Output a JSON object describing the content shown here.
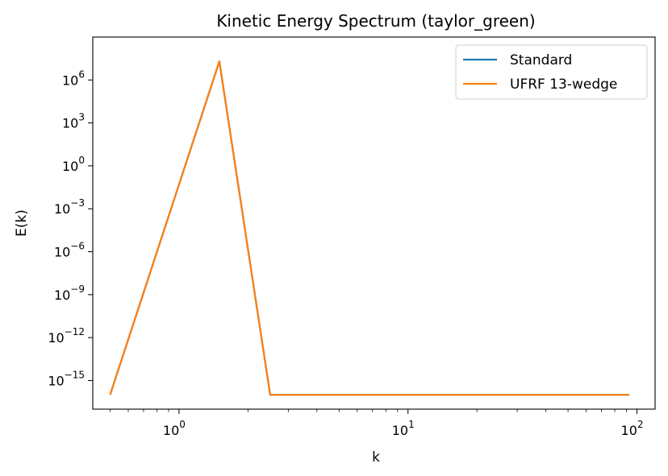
{
  "chart_data": {
    "type": "line",
    "title": "Kinetic Energy Spectrum (taylor_green)",
    "xlabel": "k",
    "ylabel": "E(k)",
    "xscale": "log",
    "yscale": "log",
    "xlim": [
      0.42,
      120
    ],
    "ylim": [
      1e-17,
      1000000000.0
    ],
    "grid": false,
    "legend_position": "top-right",
    "x_ticks": [
      {
        "value": 1,
        "base": "10",
        "exp": "0"
      },
      {
        "value": 10,
        "base": "10",
        "exp": "1"
      },
      {
        "value": 100,
        "base": "10",
        "exp": "2"
      }
    ],
    "y_ticks": [
      {
        "value": 1000000.0,
        "base": "10",
        "exp": "6"
      },
      {
        "value": 1000.0,
        "base": "10",
        "exp": "3"
      },
      {
        "value": 1,
        "base": "10",
        "exp": "0"
      },
      {
        "value": 0.001,
        "base": "10",
        "exp": "−3"
      },
      {
        "value": 1e-06,
        "base": "10",
        "exp": "−6"
      },
      {
        "value": 1e-09,
        "base": "10",
        "exp": "−9"
      },
      {
        "value": 1e-12,
        "base": "10",
        "exp": "−12"
      },
      {
        "value": 1e-15,
        "base": "10",
        "exp": "−15"
      }
    ],
    "x": [
      0.5,
      1.5,
      2.5,
      92.5
    ],
    "series": [
      {
        "name": "Standard",
        "color": "#1f77b4",
        "values": [
          1e-16,
          20000000.0,
          1e-16,
          1e-16
        ]
      },
      {
        "name": "UFRF 13-wedge",
        "color": "#ff7f0e",
        "values": [
          1e-16,
          20000000.0,
          1e-16,
          1e-16
        ]
      }
    ]
  }
}
